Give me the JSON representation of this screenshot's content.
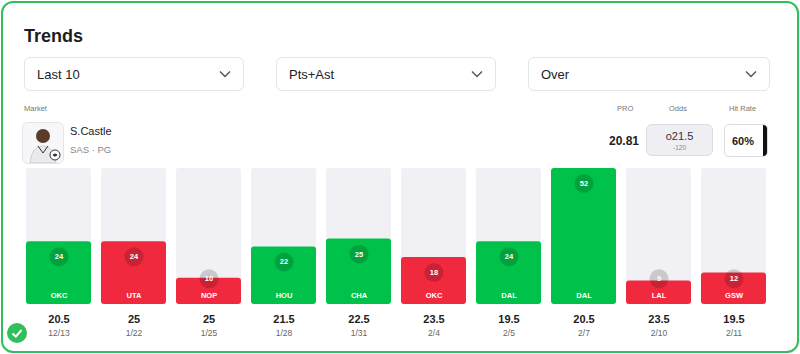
{
  "page": {
    "title": "Trends",
    "filters": [
      "Last 10",
      "Pts+Ast",
      "Over"
    ],
    "market_label": "Market",
    "player": "S.Castle",
    "player_info": "SAS · PG",
    "pro_label": "PRO",
    "pro": "20.81",
    "odds_label": "Odds",
    "odds": "o21.5",
    "odds_price": "-120",
    "hit_rate_label": "Hit Rate",
    "hit_rate": "60%"
  },
  "chart_data": {
    "type": "bar",
    "categories": [
      "OKC",
      "UTA",
      "NOP",
      "HOU",
      "CHA",
      "OKC",
      "DAL",
      "DAL",
      "LAL",
      "GSW"
    ],
    "values": [
      24,
      24,
      10,
      22,
      25,
      18,
      24,
      52,
      9,
      12
    ],
    "colors": [
      "#00c24b",
      "#f0293e",
      "#f0293e",
      "#00c24b",
      "#00c24b",
      "#f0293e",
      "#00c24b",
      "#00c24b",
      "#f0293e",
      "#f0293e"
    ],
    "lines": [
      20.5,
      25,
      25,
      21.5,
      22.5,
      23.5,
      19.5,
      20.5,
      23.5,
      19.5
    ],
    "dates": [
      "12/13",
      "1/22",
      "1/25",
      "1/28",
      "1/31",
      "2/4",
      "2/5",
      "2/7",
      "2/10",
      "2/11"
    ],
    "ylim": [
      0,
      52
    ],
    "data_labels": true
  }
}
